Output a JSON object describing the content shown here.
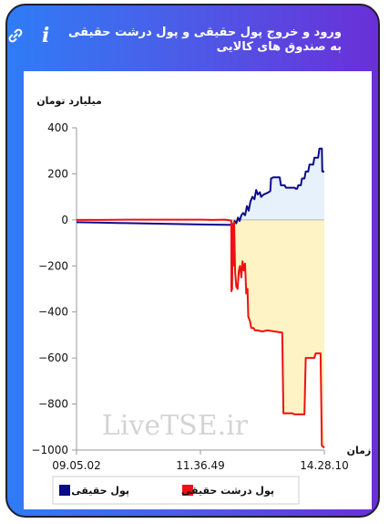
{
  "header": {
    "title": "ورود و خروج پول حقیقی و پول درشت حقیقی به صندوق های کالایی",
    "info_icon": "info-icon",
    "link_icon": "link-icon"
  },
  "chart_data": {
    "type": "line",
    "ylabel": "میلیارد تومان",
    "xlabel": "زمان",
    "ylim": [
      -1000,
      400
    ],
    "yticks": [
      400,
      200,
      0,
      -200,
      -400,
      -600,
      -800,
      -1000
    ],
    "xticks": [
      "09.05.02",
      "11.36.49",
      "14.28.10"
    ],
    "watermark": "LiveTSE.ir",
    "legend_position": "bottom",
    "series": [
      {
        "name": "پول حقیقی",
        "color": "#0a0a8a",
        "fill": "#e6f1fb",
        "points": [
          [
            0.0,
            -10
          ],
          [
            0.1,
            -12
          ],
          [
            0.2,
            -14
          ],
          [
            0.3,
            -16
          ],
          [
            0.4,
            -18
          ],
          [
            0.5,
            -20
          ],
          [
            0.6,
            -21
          ],
          [
            0.6245,
            -22
          ],
          [
            0.626,
            -30
          ],
          [
            0.632,
            -20
          ],
          [
            0.638,
            -5
          ],
          [
            0.645,
            -15
          ],
          [
            0.652,
            10
          ],
          [
            0.658,
            -5
          ],
          [
            0.665,
            20
          ],
          [
            0.672,
            30
          ],
          [
            0.68,
            20
          ],
          [
            0.688,
            60
          ],
          [
            0.695,
            40
          ],
          [
            0.702,
            80
          ],
          [
            0.71,
            100
          ],
          [
            0.718,
            90
          ],
          [
            0.725,
            130
          ],
          [
            0.732,
            110
          ],
          [
            0.74,
            120
          ],
          [
            0.745,
            100
          ],
          [
            0.755,
            110
          ],
          [
            0.765,
            115
          ],
          [
            0.775,
            120
          ],
          [
            0.782,
            125
          ],
          [
            0.785,
            180
          ],
          [
            0.795,
            185
          ],
          [
            0.82,
            185
          ],
          [
            0.825,
            150
          ],
          [
            0.84,
            150
          ],
          [
            0.845,
            140
          ],
          [
            0.88,
            140
          ],
          [
            0.885,
            135
          ],
          [
            0.89,
            135
          ],
          [
            0.895,
            150
          ],
          [
            0.905,
            150
          ],
          [
            0.91,
            180
          ],
          [
            0.92,
            180
          ],
          [
            0.925,
            210
          ],
          [
            0.935,
            210
          ],
          [
            0.94,
            240
          ],
          [
            0.955,
            240
          ],
          [
            0.96,
            270
          ],
          [
            0.975,
            270
          ],
          [
            0.98,
            310
          ],
          [
            0.99,
            310
          ],
          [
            0.992,
            210
          ],
          [
            1.0,
            210
          ]
        ]
      },
      {
        "name": "پول درشت حقیقی",
        "color": "#f01010",
        "fill": "#fdf3c4",
        "points": [
          [
            0.0,
            0
          ],
          [
            0.1,
            0
          ],
          [
            0.2,
            1
          ],
          [
            0.3,
            1
          ],
          [
            0.4,
            1
          ],
          [
            0.5,
            1
          ],
          [
            0.55,
            0
          ],
          [
            0.6,
            1
          ],
          [
            0.6245,
            -3
          ],
          [
            0.625,
            -310
          ],
          [
            0.628,
            -300
          ],
          [
            0.63,
            -20
          ],
          [
            0.632,
            -200
          ],
          [
            0.636,
            -10
          ],
          [
            0.64,
            -230
          ],
          [
            0.645,
            -290
          ],
          [
            0.65,
            -300
          ],
          [
            0.655,
            -220
          ],
          [
            0.66,
            -200
          ],
          [
            0.665,
            -250
          ],
          [
            0.67,
            -180
          ],
          [
            0.675,
            -220
          ],
          [
            0.68,
            -190
          ],
          [
            0.685,
            -320
          ],
          [
            0.69,
            -300
          ],
          [
            0.693,
            -420
          ],
          [
            0.7,
            -440
          ],
          [
            0.705,
            -470
          ],
          [
            0.715,
            -470
          ],
          [
            0.72,
            -480
          ],
          [
            0.73,
            -480
          ],
          [
            0.75,
            -485
          ],
          [
            0.77,
            -480
          ],
          [
            0.8,
            -485
          ],
          [
            0.83,
            -490
          ],
          [
            0.835,
            -840
          ],
          [
            0.87,
            -840
          ],
          [
            0.88,
            -845
          ],
          [
            0.92,
            -845
          ],
          [
            0.925,
            -600
          ],
          [
            0.96,
            -600
          ],
          [
            0.965,
            -580
          ],
          [
            0.985,
            -580
          ],
          [
            0.99,
            -980
          ],
          [
            1.0,
            -990
          ]
        ]
      }
    ]
  }
}
